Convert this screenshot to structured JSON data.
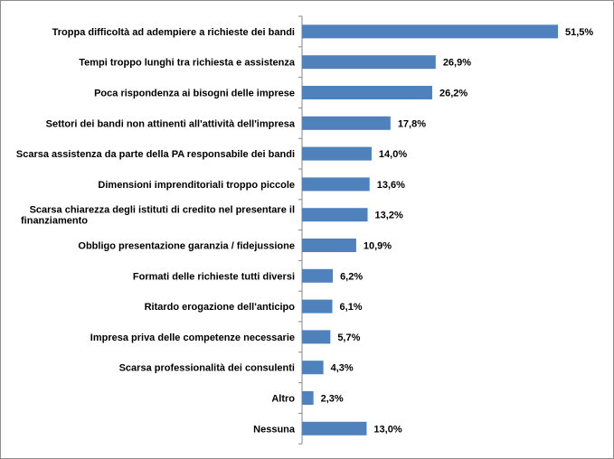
{
  "chart_data": {
    "type": "bar",
    "orientation": "horizontal",
    "categories": [
      [
        "Troppa difficoltà ad adempiere a richieste dei bandi"
      ],
      [
        "Tempi troppo lunghi tra richiesta e assistenza"
      ],
      [
        "Poca rispondenza ai bisogni delle imprese"
      ],
      [
        "Settori dei bandi non attinenti all'attività  dell'impresa"
      ],
      [
        "Scarsa assistenza  da parte della PA responsabile dei bandi"
      ],
      [
        "Dimensioni imprenditoriali troppo piccole"
      ],
      [
        "Scarsa chiarezza  degli istituti  di credito nel presentare il",
        "finanziamento"
      ],
      [
        "Obbligo presentazione garanzia  / fidejussione"
      ],
      [
        "Formati delle richieste tutti  diversi"
      ],
      [
        "Ritardo erogazione dell'anticipo"
      ],
      [
        "Impresa priva delle competenze necessarie"
      ],
      [
        "Scarsa professionalità  dei consulenti"
      ],
      [
        "Altro"
      ],
      [
        "Nessuna"
      ]
    ],
    "values": [
      51.5,
      26.9,
      26.2,
      17.8,
      14.0,
      13.6,
      13.2,
      10.9,
      6.2,
      6.1,
      5.7,
      4.3,
      2.3,
      13.0
    ],
    "value_labels": [
      "51,5%",
      "26,9%",
      "26,2%",
      "17,8%",
      "14,0%",
      "13,6%",
      "13,2%",
      "10,9%",
      "6,2%",
      "6,1%",
      "5,7%",
      "4,3%",
      "2,3%",
      "13,0%"
    ],
    "xlim": [
      0,
      51.5
    ],
    "grid": false,
    "legend": "none",
    "bar_color": "#4f81bd",
    "axis_color": "#868686"
  }
}
